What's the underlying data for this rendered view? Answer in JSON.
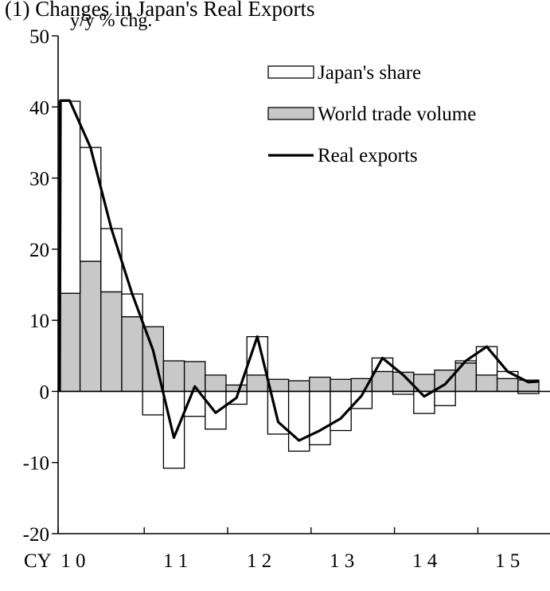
{
  "header": {
    "title": "(1) Changes in Japan's Real Exports",
    "ylabel": "y/y % chg."
  },
  "chart_data": {
    "type": "bar",
    "title": "(1) Changes in Japan's Real Exports",
    "ylabel": "y/y % chg.",
    "xlabel": "",
    "ylim": [
      -20,
      50
    ],
    "yticks": [
      -20,
      -10,
      0,
      10,
      20,
      30,
      40,
      50
    ],
    "x_axis_labels": [
      {
        "label": "CY  1 0",
        "quarter_index": 0
      },
      {
        "label": "1 1",
        "quarter_index": 4
      },
      {
        "label": "1 2",
        "quarter_index": 8
      },
      {
        "label": "1 3",
        "quarter_index": 12
      },
      {
        "label": "1 4",
        "quarter_index": 16
      },
      {
        "label": "1 5",
        "quarter_index": 20
      }
    ],
    "categories": [
      "2010Q1",
      "2010Q2",
      "2010Q3",
      "2010Q4",
      "2011Q1",
      "2011Q2",
      "2011Q3",
      "2011Q4",
      "2012Q1",
      "2012Q2",
      "2012Q3",
      "2012Q4",
      "2013Q1",
      "2013Q2",
      "2013Q3",
      "2013Q4",
      "2014Q1",
      "2014Q2",
      "2014Q3",
      "2014Q4",
      "2015Q1",
      "2015Q2",
      "2015Q3"
    ],
    "legend": {
      "position": "top-right"
    },
    "series": [
      {
        "name": "World trade volume",
        "kind": "bar",
        "values": [
          13.8,
          18.3,
          14.0,
          10.5,
          9.1,
          4.3,
          4.2,
          2.3,
          0.9,
          2.3,
          1.7,
          1.5,
          2.0,
          1.7,
          1.8,
          2.8,
          2.7,
          2.4,
          3.0,
          4.0,
          2.3,
          1.8,
          1.6
        ]
      },
      {
        "name": "Japan's share",
        "kind": "bar-outline",
        "values": [
          27.0,
          16.0,
          8.9,
          3.2,
          -3.3,
          -10.8,
          -3.5,
          -5.3,
          -1.8,
          5.4,
          -6.0,
          -8.4,
          -7.5,
          -5.5,
          -2.4,
          1.9,
          -0.4,
          -3.1,
          -2.0,
          0.3,
          4.0,
          1.0,
          -0.3
        ]
      },
      {
        "name": "Real exports",
        "kind": "line",
        "values": [
          40.9,
          34.3,
          22.9,
          13.7,
          5.8,
          -6.5,
          0.7,
          -3.0,
          -0.9,
          7.7,
          -4.3,
          -6.9,
          -5.5,
          -3.8,
          -0.6,
          4.7,
          2.3,
          -0.7,
          1.0,
          4.3,
          6.3,
          2.8,
          1.3
        ]
      }
    ],
    "line_start": {
      "x_label": "CY  1 0",
      "value": 0
    }
  }
}
